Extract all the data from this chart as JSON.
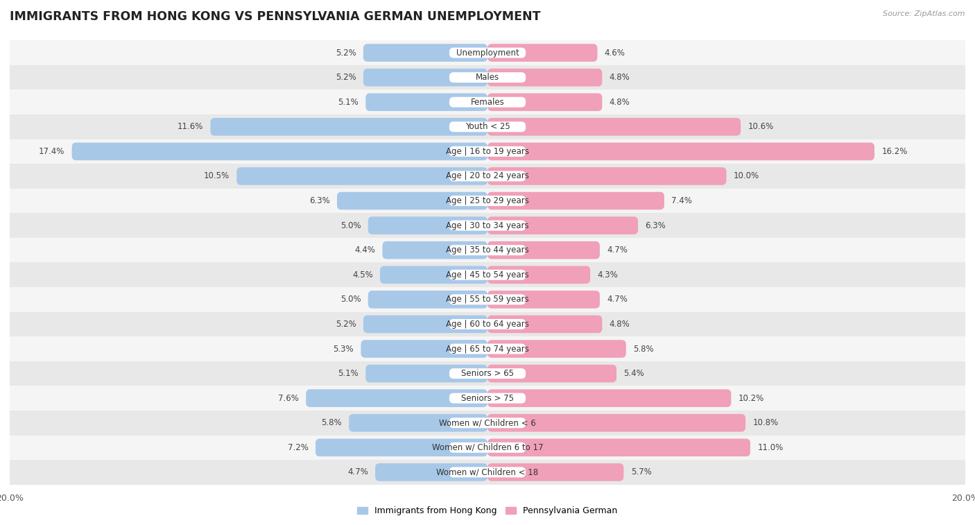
{
  "title": "IMMIGRANTS FROM HONG KONG VS PENNSYLVANIA GERMAN UNEMPLOYMENT",
  "source": "Source: ZipAtlas.com",
  "categories": [
    "Unemployment",
    "Males",
    "Females",
    "Youth < 25",
    "Age | 16 to 19 years",
    "Age | 20 to 24 years",
    "Age | 25 to 29 years",
    "Age | 30 to 34 years",
    "Age | 35 to 44 years",
    "Age | 45 to 54 years",
    "Age | 55 to 59 years",
    "Age | 60 to 64 years",
    "Age | 65 to 74 years",
    "Seniors > 65",
    "Seniors > 75",
    "Women w/ Children < 6",
    "Women w/ Children 6 to 17",
    "Women w/ Children < 18"
  ],
  "left_values": [
    5.2,
    5.2,
    5.1,
    11.6,
    17.4,
    10.5,
    6.3,
    5.0,
    4.4,
    4.5,
    5.0,
    5.2,
    5.3,
    5.1,
    7.6,
    5.8,
    7.2,
    4.7
  ],
  "right_values": [
    4.6,
    4.8,
    4.8,
    10.6,
    16.2,
    10.0,
    7.4,
    6.3,
    4.7,
    4.3,
    4.7,
    4.8,
    5.8,
    5.4,
    10.2,
    10.8,
    11.0,
    5.7
  ],
  "left_color": "#a8c8e8",
  "right_color": "#f0a0b8",
  "bar_height": 0.72,
  "xlim": 20.0,
  "row_bg_odd": "#f5f5f5",
  "row_bg_even": "#e8e8e8",
  "legend_left": "Immigrants from Hong Kong",
  "legend_right": "Pennsylvania German",
  "title_fontsize": 12.5,
  "label_fontsize": 8.5,
  "value_fontsize": 8.5
}
